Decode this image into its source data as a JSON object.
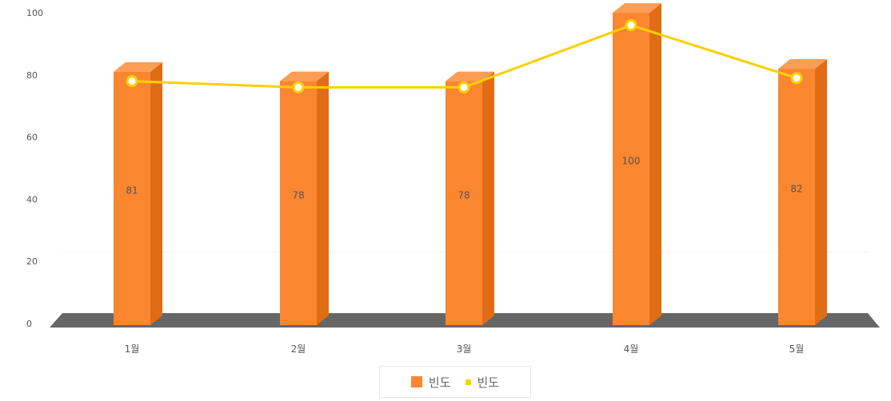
{
  "chart_data": {
    "type": "bar",
    "categories": [
      "1월",
      "2월",
      "3월",
      "4월",
      "5월"
    ],
    "series": [
      {
        "name": "빈도",
        "kind": "bar",
        "color": "#fa8630",
        "values": [
          81,
          78,
          78,
          100,
          82
        ],
        "labels": [
          "81",
          "78",
          "78",
          "100",
          "82"
        ]
      },
      {
        "name": "빈도",
        "kind": "line",
        "color": "#f9d000",
        "values": [
          78,
          76,
          76,
          96,
          79
        ]
      }
    ],
    "ylim": [
      0,
      100
    ],
    "yticks": [
      "0",
      "20",
      "40",
      "60",
      "80",
      "100"
    ],
    "legend": "bottom-center",
    "grid": false
  }
}
